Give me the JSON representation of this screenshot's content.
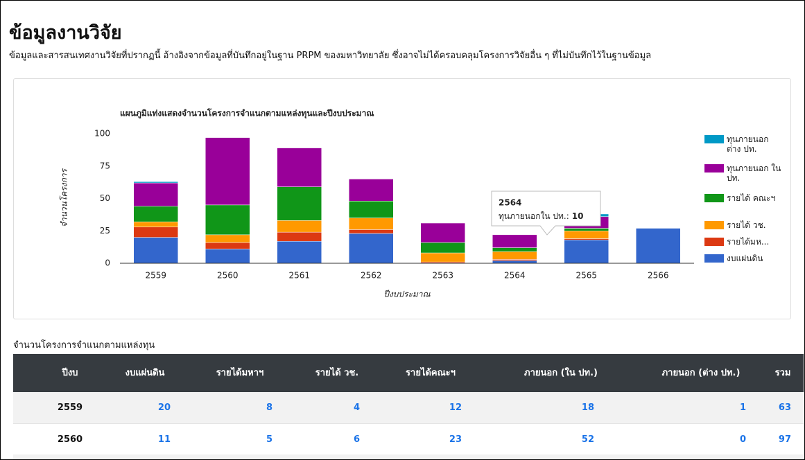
{
  "header": {
    "title": "ข้อมูลงานวิจัย",
    "subtitle": "ข้อมูลและสารสนเทศงานวิจัยที่ปรากฏนี้ อ้างอิงจากข้อมูลที่บันทึกอยู่ในฐาน PRPM ของมหาวิทยาลัย ซึ่งอาจไม่ได้ครอบคลุมโครงการวิจัยอื่น ๆ ที่ไม่บันทึกไว้ในฐานข้อมูล"
  },
  "chart_data": {
    "type": "stacked_bar",
    "title": "แผนภูมิแท่งแสดงจำนวนโครงการจำแนกตามแหล่งทุนและปีงบประมาณ",
    "x_label": "ปีงบประมาณ",
    "y_label": "จำนวนโครงการ",
    "categories": [
      "2559",
      "2560",
      "2561",
      "2562",
      "2563",
      "2564",
      "2565",
      "2566"
    ],
    "ylim": [
      0,
      100
    ],
    "yticks": [
      0,
      25,
      50,
      75,
      100
    ],
    "grid": false,
    "legend": "right",
    "series": [
      {
        "name": "งบแผ่นดิน",
        "color": "#3366cc",
        "values": [
          20,
          11,
          17,
          23,
          0,
          2,
          18,
          27
        ]
      },
      {
        "name": "รายได้มห...",
        "color": "#dc3912",
        "values": [
          8,
          5,
          7,
          3,
          1,
          1,
          1,
          0
        ]
      },
      {
        "name": "รายได้ วช.",
        "color": "#ff9900",
        "values": [
          4,
          6,
          9,
          9,
          7,
          6,
          6,
          0
        ]
      },
      {
        "name": "รายได้ คณะฯ",
        "color": "#109618",
        "values": [
          12,
          23,
          26,
          13,
          8,
          3,
          2,
          0
        ]
      },
      {
        "name": "ทุนภายนอก ใน ปท.",
        "color": "#990099",
        "values": [
          18,
          52,
          30,
          17,
          15,
          10,
          9,
          0
        ]
      },
      {
        "name": "ทุนภายนอก ต่าง ปท.",
        "color": "#0099c6",
        "values": [
          1,
          0,
          0,
          0,
          0,
          0,
          2,
          0
        ]
      }
    ]
  },
  "tooltip": {
    "title": "2564",
    "label": "ทุนภายนอกใน ปท.:",
    "value": 10
  },
  "table": {
    "caption": "จำนวนโครงการจำแนกตามแหล่งทุน",
    "columns": [
      "ปีงบ",
      "งบแผ่นดิน",
      "รายได้มหาฯ",
      "รายได้ วช.",
      "รายได้คณะฯ",
      "ภายนอก (ใน ปท.)",
      "ภายนอก (ต่าง ปท.)",
      "รวม"
    ],
    "rows": [
      [
        "2559",
        20,
        8,
        4,
        12,
        18,
        1,
        63
      ],
      [
        "2560",
        11,
        5,
        6,
        23,
        52,
        0,
        97
      ]
    ]
  }
}
